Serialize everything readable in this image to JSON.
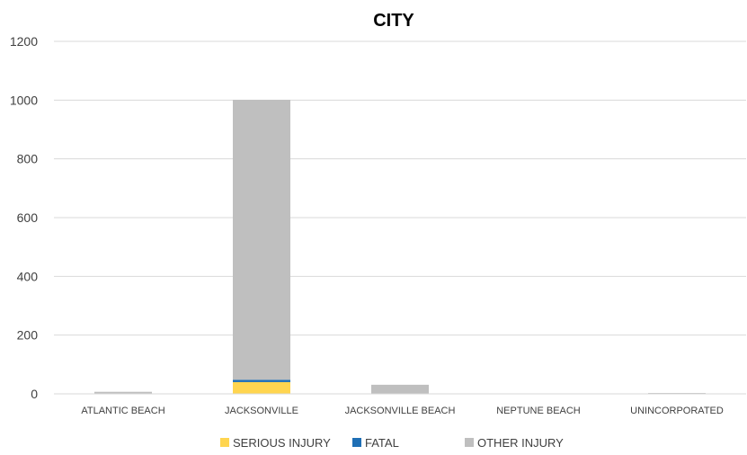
{
  "chart_data": {
    "type": "bar",
    "stacked": true,
    "title": "CITY",
    "xlabel": "",
    "ylabel": "",
    "ylim": [
      0,
      1200
    ],
    "yticks": [
      0,
      200,
      400,
      600,
      800,
      1000,
      1200
    ],
    "grid": true,
    "legend_position": "bottom",
    "categories": [
      "ATLANTIC BEACH",
      "JACKSONVILLE",
      "JACKSONVILLE BEACH",
      "NEPTUNE BEACH",
      "UNINCORPORATED"
    ],
    "series": [
      {
        "name": "SERIOUS INJURY",
        "color": "#FFD54F",
        "values": [
          0,
          40,
          1,
          0,
          0
        ]
      },
      {
        "name": "FATAL",
        "color": "#1F6FB5",
        "values": [
          0,
          8,
          0,
          0,
          0
        ]
      },
      {
        "name": "OTHER INJURY",
        "color": "#BFBFBF",
        "values": [
          7,
          953,
          30,
          1,
          3
        ]
      }
    ]
  }
}
